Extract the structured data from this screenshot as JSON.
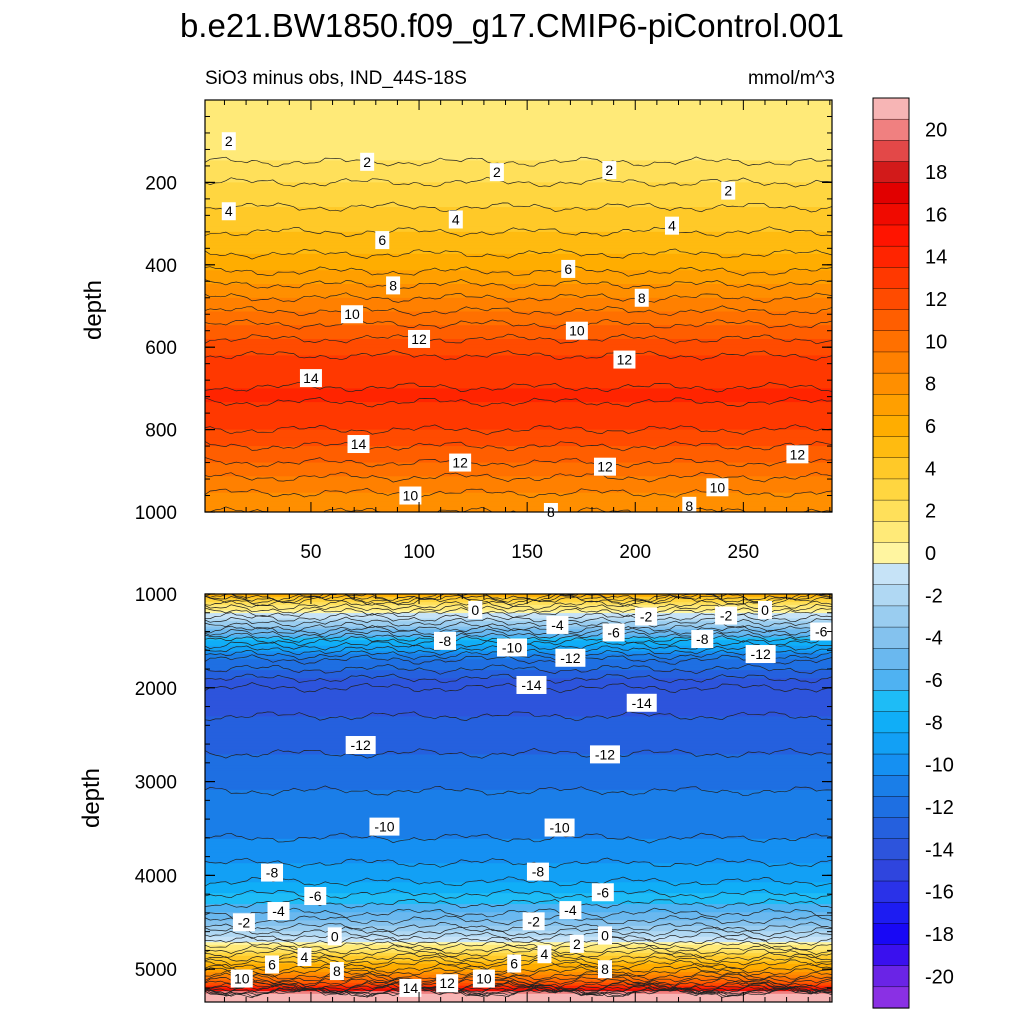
{
  "title": "b.e21.BW1850.f09_g17.CMIP6-piControl.001",
  "subtitle_left": "SiO3 minus obs, IND_44S-18S",
  "subtitle_right": "mmol/m^3",
  "chart_data": [
    {
      "type": "heatmap",
      "panel": "upper",
      "xlabel": "",
      "ylabel": "depth",
      "xlim": [
        1,
        291
      ],
      "ylim": [
        0,
        1000
      ],
      "y_inverted": true,
      "xticks": [
        50,
        100,
        150,
        200,
        250
      ],
      "yticks": [
        200,
        400,
        600,
        800,
        1000
      ],
      "profile": {
        "depth": [
          0,
          100,
          150,
          200,
          260,
          320,
          400,
          480,
          560,
          640,
          720,
          800,
          880,
          940,
          1000
        ],
        "value": [
          1,
          1.5,
          2,
          3,
          4,
          5,
          6.5,
          9,
          11.5,
          13.5,
          14.2,
          13,
          11,
          9.3,
          8
        ]
      },
      "contour_labels": [
        {
          "text": "2",
          "x": 12,
          "y": 100
        },
        {
          "text": "2",
          "x": 76,
          "y": 150
        },
        {
          "text": "2",
          "x": 136,
          "y": 175
        },
        {
          "text": "2",
          "x": 188,
          "y": 170
        },
        {
          "text": "2",
          "x": 243,
          "y": 220
        },
        {
          "text": "4",
          "x": 12,
          "y": 270
        },
        {
          "text": "4",
          "x": 117,
          "y": 290
        },
        {
          "text": "4",
          "x": 217,
          "y": 305
        },
        {
          "text": "6",
          "x": 83,
          "y": 340
        },
        {
          "text": "6",
          "x": 169,
          "y": 410
        },
        {
          "text": "8",
          "x": 88,
          "y": 450
        },
        {
          "text": "8",
          "x": 203,
          "y": 480
        },
        {
          "text": "10",
          "x": 69,
          "y": 520
        },
        {
          "text": "10",
          "x": 173,
          "y": 560
        },
        {
          "text": "12",
          "x": 100,
          "y": 580
        },
        {
          "text": "12",
          "x": 195,
          "y": 630
        },
        {
          "text": "14",
          "x": 50,
          "y": 675
        },
        {
          "text": "14",
          "x": 72,
          "y": 835
        },
        {
          "text": "12",
          "x": 119,
          "y": 880
        },
        {
          "text": "12",
          "x": 186,
          "y": 890
        },
        {
          "text": "12",
          "x": 275,
          "y": 860
        },
        {
          "text": "10",
          "x": 96,
          "y": 960
        },
        {
          "text": "10",
          "x": 238,
          "y": 940
        },
        {
          "text": "8",
          "x": 161,
          "y": 1000
        },
        {
          "text": "8",
          "x": 225,
          "y": 985
        }
      ]
    },
    {
      "type": "heatmap",
      "panel": "lower",
      "xlabel": "",
      "ylabel": "depth",
      "xlim": [
        1,
        291
      ],
      "ylim": [
        1000,
        5350
      ],
      "y_inverted": true,
      "yticks": [
        1000,
        2000,
        3000,
        4000,
        5000
      ],
      "profile": {
        "depth": [
          1000,
          1080,
          1200,
          1350,
          1500,
          1700,
          2000,
          2300,
          2700,
          3100,
          3600,
          4000,
          4200,
          4400,
          4550,
          4650,
          4750,
          4850,
          4950,
          5050,
          5150,
          5230,
          5250,
          5350
        ],
        "value": [
          7,
          3,
          0,
          -3,
          -7,
          -11,
          -14,
          -13,
          -12,
          -11,
          -10,
          -8.5,
          -7,
          -5,
          -3,
          -1,
          1,
          3.5,
          6,
          8.5,
          12,
          17,
          21,
          21
        ]
      },
      "contour_labels": [
        {
          "text": "0",
          "x": 126,
          "y": 1170
        },
        {
          "text": "-4",
          "x": 164,
          "y": 1330
        },
        {
          "text": "-2",
          "x": 205,
          "y": 1240
        },
        {
          "text": "-2",
          "x": 242,
          "y": 1230
        },
        {
          "text": "0",
          "x": 260,
          "y": 1170
        },
        {
          "text": "-8",
          "x": 112,
          "y": 1500
        },
        {
          "text": "-6",
          "x": 190,
          "y": 1410
        },
        {
          "text": "-10",
          "x": 143,
          "y": 1570
        },
        {
          "text": "-12",
          "x": 170,
          "y": 1680
        },
        {
          "text": "-8",
          "x": 231,
          "y": 1480
        },
        {
          "text": "-6",
          "x": 286,
          "y": 1400
        },
        {
          "text": "-12",
          "x": 258,
          "y": 1640
        },
        {
          "text": "-14",
          "x": 152,
          "y": 1970
        },
        {
          "text": "-14",
          "x": 203,
          "y": 2160
        },
        {
          "text": "-12",
          "x": 73,
          "y": 2610
        },
        {
          "text": "-12",
          "x": 186,
          "y": 2710
        },
        {
          "text": "-10",
          "x": 84,
          "y": 3480
        },
        {
          "text": "-10",
          "x": 165,
          "y": 3490
        },
        {
          "text": "-8",
          "x": 32,
          "y": 3970
        },
        {
          "text": "-8",
          "x": 155,
          "y": 3960
        },
        {
          "text": "-6",
          "x": 52,
          "y": 4220
        },
        {
          "text": "-6",
          "x": 185,
          "y": 4180
        },
        {
          "text": "-4",
          "x": 35,
          "y": 4380
        },
        {
          "text": "-4",
          "x": 170,
          "y": 4370
        },
        {
          "text": "-2",
          "x": 19,
          "y": 4500
        },
        {
          "text": "-2",
          "x": 153,
          "y": 4490
        },
        {
          "text": "0",
          "x": 61,
          "y": 4650
        },
        {
          "text": "0",
          "x": 186,
          "y": 4640
        },
        {
          "text": "2",
          "x": 173,
          "y": 4730
        },
        {
          "text": "4",
          "x": 47,
          "y": 4870
        },
        {
          "text": "4",
          "x": 158,
          "y": 4840
        },
        {
          "text": "6",
          "x": 32,
          "y": 4950
        },
        {
          "text": "6",
          "x": 144,
          "y": 4940
        },
        {
          "text": "8",
          "x": 62,
          "y": 5020
        },
        {
          "text": "8",
          "x": 186,
          "y": 5000
        },
        {
          "text": "10",
          "x": 18,
          "y": 5100
        },
        {
          "text": "10",
          "x": 130,
          "y": 5100
        },
        {
          "text": "12",
          "x": 113,
          "y": 5150
        },
        {
          "text": "14",
          "x": 96,
          "y": 5200
        }
      ]
    }
  ],
  "colorbar": {
    "min": -21,
    "max": 21,
    "step": 1,
    "ticks": [
      "20",
      "18",
      "16",
      "14",
      "12",
      "10",
      "8",
      "6",
      "4",
      "2",
      "0",
      "-2",
      "-4",
      "-6",
      "-8",
      "-10",
      "-12",
      "-14",
      "-16",
      "-18",
      "-20"
    ],
    "colors_top_to_bottom": [
      "#f7b5b5",
      "#f08080",
      "#e34848",
      "#d21a1a",
      "#e10000",
      "#f00a00",
      "#ff1400",
      "#ff2400",
      "#ff3800",
      "#ff4b00",
      "#ff5e00",
      "#ff7000",
      "#ff8000",
      "#ff8f00",
      "#ff9f00",
      "#ffad00",
      "#ffbb10",
      "#ffc928",
      "#ffd640",
      "#ffe05a",
      "#ffea78",
      "#fff5a0",
      "#c6e3f7",
      "#b0d8f3",
      "#9acdf0",
      "#84c2ee",
      "#6ab8ef",
      "#4fb2f2",
      "#1ebcf6",
      "#10aef7",
      "#12a0f5",
      "#1590f2",
      "#1a7ee8",
      "#1e6fe2",
      "#2560de",
      "#2d54dc",
      "#2f45de",
      "#2a32e8",
      "#1d1cf2",
      "#1808f5",
      "#3a10ee",
      "#6a24e6",
      "#8a30e4"
    ]
  }
}
